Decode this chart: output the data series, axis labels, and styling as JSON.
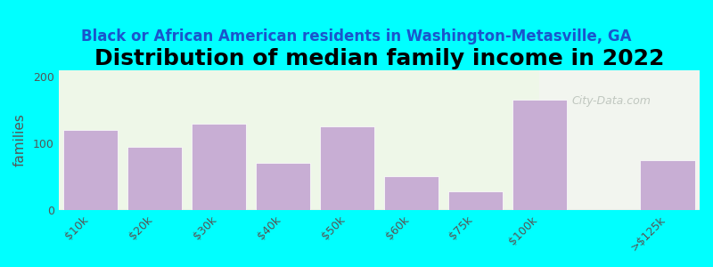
{
  "title": "Distribution of median family income in 2022",
  "subtitle": "Black or African American residents in Washington-Metasville, GA",
  "ylabel": "families",
  "bar_labels": [
    "$10k",
    "$20k",
    "$30k",
    "$40k",
    "$50k",
    "$60k",
    "$75k",
    "$100k",
    "",
    ">$125k"
  ],
  "bar_values": [
    120,
    95,
    130,
    70,
    125,
    50,
    28,
    165,
    0,
    75
  ],
  "bar_color": "#c8aed4",
  "background_outer": "#00ffff",
  "background_inner_left": "#eef7e8",
  "background_inner_right": "#f2f5ef",
  "ylim": [
    0,
    210
  ],
  "yticks": [
    0,
    100,
    200
  ],
  "title_fontsize": 18,
  "subtitle_fontsize": 12,
  "watermark": "City-Data.com"
}
